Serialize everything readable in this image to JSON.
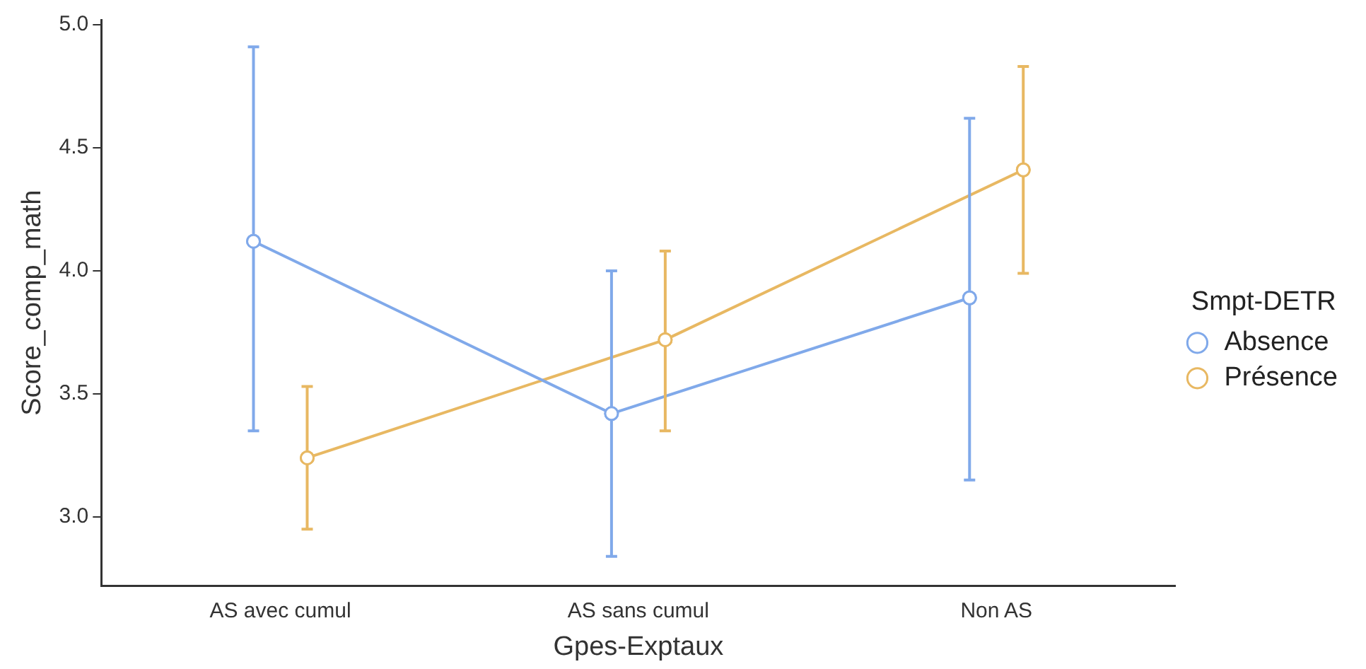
{
  "chart_data": {
    "type": "line",
    "xlabel": "Gpes-Exptaux",
    "ylabel": "Score_comp_math",
    "legend_title": "Smpt-DETR",
    "categories": [
      "AS avec cumul",
      "AS sans cumul",
      "Non AS"
    ],
    "series": [
      {
        "name": "Absence",
        "color": "#80a9ea",
        "values": [
          4.12,
          3.42,
          3.89
        ],
        "errors": [
          [
            3.35,
            4.91
          ],
          [
            2.84,
            4.0
          ],
          [
            3.15,
            4.62
          ]
        ]
      },
      {
        "name": "Présence",
        "color": "#e8b862",
        "values": [
          3.24,
          3.72,
          4.41
        ],
        "errors": [
          [
            2.95,
            3.53
          ],
          [
            3.35,
            4.08
          ],
          [
            3.99,
            4.83
          ]
        ]
      }
    ],
    "ylim": [
      2.72,
      5.02
    ],
    "yticks": [
      {
        "value": 3,
        "label": "3.0"
      },
      3.5,
      {
        "value": 4,
        "label": "4.0"
      },
      4.5,
      {
        "value": 5,
        "label": "5.0"
      }
    ],
    "grid": false,
    "legend": "right",
    "marker": "circle",
    "line_style": "solid"
  }
}
